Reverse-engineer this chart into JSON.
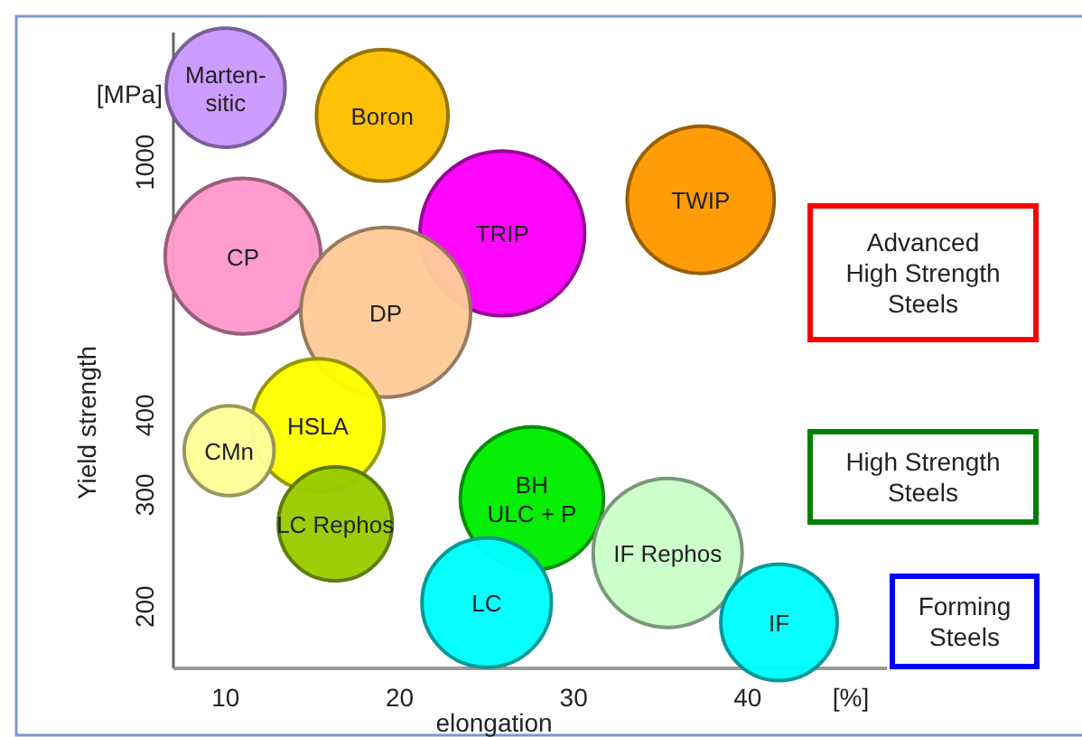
{
  "chart_data": {
    "type": "bubble",
    "xlabel": "elongation",
    "ylabel": "Yield strength",
    "log": "y",
    "xlim": [
      7,
      48
    ],
    "xticks": [
      10,
      20,
      30,
      40
    ],
    "ylim": [
      160,
      1600
    ],
    "yticks": [
      200,
      300,
      400,
      1000
    ],
    "grid": false,
    "series": [
      {
        "name": "Marten-\nsitic",
        "color": "#cc99ff",
        "x": [
          10
        ],
        "values": [
          1310
        ],
        "sizes": [
          0.49
        ]
      },
      {
        "name": "Boron",
        "color": "#ffc000",
        "x": [
          19
        ],
        "values": [
          1185
        ],
        "sizes": [
          0.6
        ]
      },
      {
        "name": "TWIP",
        "color": "#ff9900",
        "x": [
          37.3
        ],
        "values": [
          873
        ],
        "sizes": [
          0.75
        ]
      },
      {
        "name": "CP",
        "color": "#ff99cc",
        "x": [
          11
        ],
        "values": [
          712
        ],
        "sizes": [
          0.84
        ]
      },
      {
        "name": "TRIP",
        "color": "#ff00ff",
        "x": [
          25.9
        ],
        "values": [
          773
        ],
        "sizes": [
          0.94
        ]
      },
      {
        "name": "DP",
        "color": "#ffcc99",
        "x": [
          19.2
        ],
        "values": [
          581
        ],
        "sizes": [
          1
        ]
      },
      {
        "name": "HSLA",
        "color": "#ffff00",
        "x": [
          15.3
        ],
        "values": [
          386
        ],
        "sizes": [
          0.61
        ]
      },
      {
        "name": "CMn",
        "color": "#ffff99",
        "x": [
          10.2
        ],
        "values": [
          352
        ],
        "sizes": [
          0.28
        ]
      },
      {
        "name": "LC Rephos",
        "color": "#99cc00",
        "x": [
          16.3
        ],
        "values": [
          270
        ],
        "sizes": [
          0.45
        ]
      },
      {
        "name": "BH\nULC + P",
        "color": "#00ee00",
        "x": [
          27.6
        ],
        "values": [
          296
        ],
        "sizes": [
          0.71
        ]
      },
      {
        "name": "IF Rephos",
        "color": "#ccffcc",
        "x": [
          35.4
        ],
        "values": [
          243
        ],
        "sizes": [
          0.77
        ]
      },
      {
        "name": "LC",
        "color": "#00ffff",
        "x": [
          25
        ],
        "values": [
          203
        ],
        "sizes": [
          0.58
        ]
      },
      {
        "name": "IF",
        "color": "#00ffff",
        "x": [
          41.8
        ],
        "values": [
          189
        ],
        "sizes": [
          0.47
        ]
      }
    ],
    "annotations": [
      "[MPa]",
      "[%]",
      "Advanced\nHigh Strength\nSteels",
      "High Strength\nSteels",
      "Forming\nSteels"
    ]
  }
}
